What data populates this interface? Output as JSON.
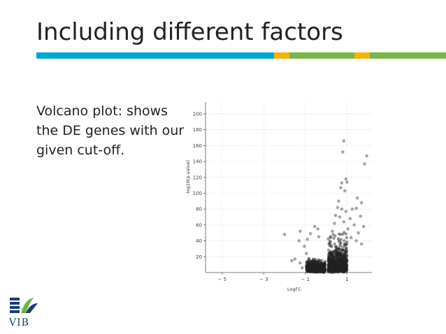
{
  "slide": {
    "title": "Including different factors",
    "body": "Volcano plot: shows the DE genes with our given cut-off."
  },
  "accent_bar": [
    {
      "color": "#00a6d6",
      "fraction": 0.58
    },
    {
      "color": "#f5b400",
      "fraction": 0.037
    },
    {
      "color": "#7ab648",
      "fraction": 0.16
    },
    {
      "color": "#f5b400",
      "fraction": 0.037
    },
    {
      "color": "#7ab648",
      "fraction": 0.186
    }
  ],
  "logo": {
    "text": "VIB",
    "colors": {
      "blue": "#1a3e6e",
      "green": "#6fb33f"
    }
  },
  "chart_data": {
    "type": "scatter",
    "title": "",
    "xlabel": "LogFC",
    "ylabel": "-log10(p-value)",
    "xlim": [
      -5.8,
      2.2
    ],
    "ylim": [
      0,
      215
    ],
    "xticks": [
      -5,
      -3,
      -1,
      1
    ],
    "yticks": [
      20,
      40,
      60,
      80,
      100,
      120,
      140,
      160,
      180,
      200
    ],
    "grid": true,
    "point_color": "#222222",
    "points": [
      {
        "x": 0.85,
        "y": 166
      },
      {
        "x": 0.8,
        "y": 152
      },
      {
        "x": 1.95,
        "y": 147
      },
      {
        "x": 1.85,
        "y": 137
      },
      {
        "x": 0.95,
        "y": 118
      },
      {
        "x": 1.0,
        "y": 114
      },
      {
        "x": 0.75,
        "y": 113
      },
      {
        "x": 0.7,
        "y": 107
      },
      {
        "x": 0.9,
        "y": 103
      },
      {
        "x": 1.5,
        "y": 94
      },
      {
        "x": 1.7,
        "y": 88
      },
      {
        "x": 0.6,
        "y": 90
      },
      {
        "x": 0.55,
        "y": 82
      },
      {
        "x": 0.75,
        "y": 80
      },
      {
        "x": 1.25,
        "y": 80
      },
      {
        "x": 1.45,
        "y": 81
      },
      {
        "x": 0.95,
        "y": 77
      },
      {
        "x": 0.45,
        "y": 72
      },
      {
        "x": 0.65,
        "y": 70
      },
      {
        "x": 1.15,
        "y": 68
      },
      {
        "x": 1.65,
        "y": 71
      },
      {
        "x": 0.85,
        "y": 64
      },
      {
        "x": 1.35,
        "y": 60
      },
      {
        "x": 1.8,
        "y": 58
      },
      {
        "x": 0.4,
        "y": 62
      },
      {
        "x": 1.05,
        "y": 55
      },
      {
        "x": 1.55,
        "y": 50
      },
      {
        "x": 0.3,
        "y": 52
      },
      {
        "x": 0.7,
        "y": 48
      },
      {
        "x": 1.2,
        "y": 44
      },
      {
        "x": 1.7,
        "y": 36
      },
      {
        "x": 1.45,
        "y": 40
      },
      {
        "x": -2.0,
        "y": 48
      },
      {
        "x": -1.25,
        "y": 52
      },
      {
        "x": -1.3,
        "y": 40
      },
      {
        "x": -0.55,
        "y": 58
      },
      {
        "x": -0.4,
        "y": 55
      },
      {
        "x": -0.75,
        "y": 49
      },
      {
        "x": -0.9,
        "y": 42
      },
      {
        "x": -0.35,
        "y": 45
      },
      {
        "x": -1.05,
        "y": 33
      },
      {
        "x": -1.5,
        "y": 17
      },
      {
        "x": -1.25,
        "y": 12
      },
      {
        "x": -0.95,
        "y": 24
      },
      {
        "x": -1.15,
        "y": 6
      },
      {
        "x": -1.65,
        "y": 15
      }
    ]
  }
}
